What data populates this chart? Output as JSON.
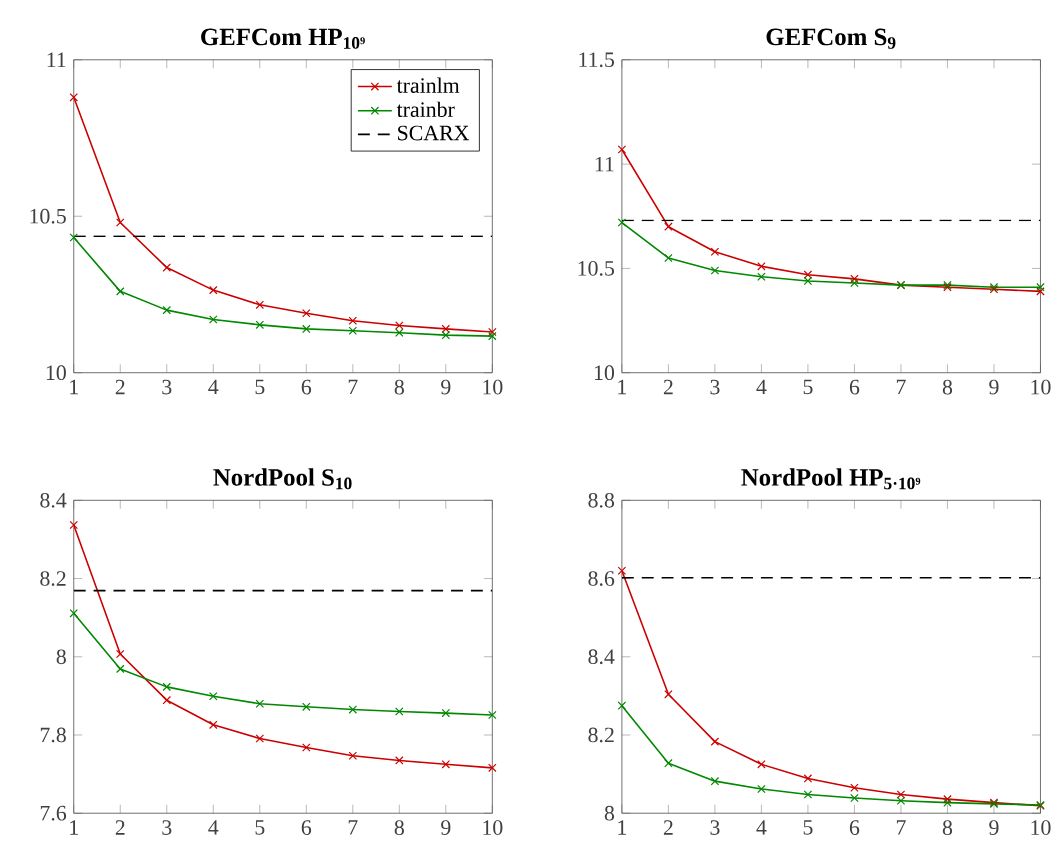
{
  "chart_data": [
    {
      "type": "line",
      "title": "GEFCom HP$_{10⁹}$",
      "x": [
        1,
        2,
        3,
        4,
        5,
        6,
        7,
        8,
        9,
        10
      ],
      "xlim": [
        1,
        10
      ],
      "xticks": [
        1,
        2,
        3,
        4,
        5,
        6,
        7,
        8,
        9,
        10
      ],
      "ylim": [
        10,
        11
      ],
      "yticks": [
        10,
        10.5,
        11
      ],
      "legend": "top right",
      "series": [
        {
          "name": "trainlm",
          "color": "#cc0000",
          "marker": "cross",
          "values": [
            10.88,
            10.48,
            10.336,
            10.264,
            10.217,
            10.19,
            10.166,
            10.151,
            10.14,
            10.13
          ]
        },
        {
          "name": "trainbr",
          "color": "#008800",
          "marker": "cross",
          "values": [
            10.432,
            10.26,
            10.2,
            10.17,
            10.153,
            10.14,
            10.134,
            10.128,
            10.12,
            10.117
          ]
        }
      ],
      "ref_lines": [
        {
          "axis": "y",
          "value": 10.436,
          "label": "SCARX",
          "color": "#000000",
          "line_style": "dashed"
        }
      ]
    },
    {
      "type": "line",
      "title": "GEFCom S$_{9}$",
      "x": [
        1,
        2,
        3,
        4,
        5,
        6,
        7,
        8,
        9,
        10
      ],
      "xlim": [
        1,
        10
      ],
      "xticks": [
        1,
        2,
        3,
        4,
        5,
        6,
        7,
        8,
        9,
        10
      ],
      "ylim": [
        10,
        11.5
      ],
      "yticks": [
        10,
        10.5,
        11,
        11.5
      ],
      "series": [
        {
          "color": "#cc0000",
          "marker": "cross",
          "values": [
            11.07,
            10.7,
            10.58,
            10.51,
            10.47,
            10.45,
            10.42,
            10.41,
            10.4,
            10.39
          ]
        },
        {
          "color": "#008800",
          "marker": "cross",
          "values": [
            10.72,
            10.55,
            10.49,
            10.46,
            10.44,
            10.43,
            10.42,
            10.42,
            10.41,
            10.41
          ]
        }
      ],
      "ref_lines": [
        {
          "axis": "y",
          "value": 10.73,
          "color": "#000000",
          "line_style": "dashed"
        }
      ]
    },
    {
      "type": "line",
      "title": "NordPool S$_{10}$",
      "x": [
        1,
        2,
        3,
        4,
        5,
        6,
        7,
        8,
        9,
        10
      ],
      "xlim": [
        1,
        10
      ],
      "xticks": [
        1,
        2,
        3,
        4,
        5,
        6,
        7,
        8,
        9,
        10
      ],
      "ylim": [
        7.6,
        8.4
      ],
      "yticks": [
        7.6,
        7.8,
        8,
        8.2,
        8.4
      ],
      "series": [
        {
          "color": "#cc0000",
          "marker": "cross",
          "values": [
            8.337,
            8.007,
            7.889,
            7.826,
            7.791,
            7.768,
            7.747,
            7.735,
            7.725,
            7.716
          ]
        },
        {
          "color": "#008800",
          "marker": "cross",
          "values": [
            8.111,
            7.969,
            7.923,
            7.899,
            7.88,
            7.872,
            7.865,
            7.86,
            7.856,
            7.851
          ]
        }
      ],
      "ref_lines": [
        {
          "axis": "y",
          "value": 8.169,
          "color": "#000000",
          "line_style": "dashed"
        }
      ]
    },
    {
      "type": "line",
      "title": "NordPool HP$_{5·10⁹}$",
      "x": [
        1,
        2,
        3,
        4,
        5,
        6,
        7,
        8,
        9,
        10
      ],
      "xlim": [
        1,
        10
      ],
      "xticks": [
        1,
        2,
        3,
        4,
        5,
        6,
        7,
        8,
        9,
        10
      ],
      "ylim": [
        8,
        8.8
      ],
      "yticks": [
        8,
        8.2,
        8.4,
        8.6,
        8.8
      ],
      "series": [
        {
          "color": "#cc0000",
          "marker": "cross",
          "values": [
            8.62,
            8.304,
            8.183,
            8.125,
            8.089,
            8.065,
            8.048,
            8.036,
            8.027,
            8.019
          ]
        },
        {
          "color": "#008800",
          "marker": "cross",
          "values": [
            8.275,
            8.128,
            8.082,
            8.062,
            8.048,
            8.039,
            8.032,
            8.027,
            8.024,
            8.021
          ]
        }
      ],
      "ref_lines": [
        {
          "axis": "y",
          "value": 8.602,
          "color": "#000000",
          "line_style": "dashed"
        }
      ]
    }
  ]
}
